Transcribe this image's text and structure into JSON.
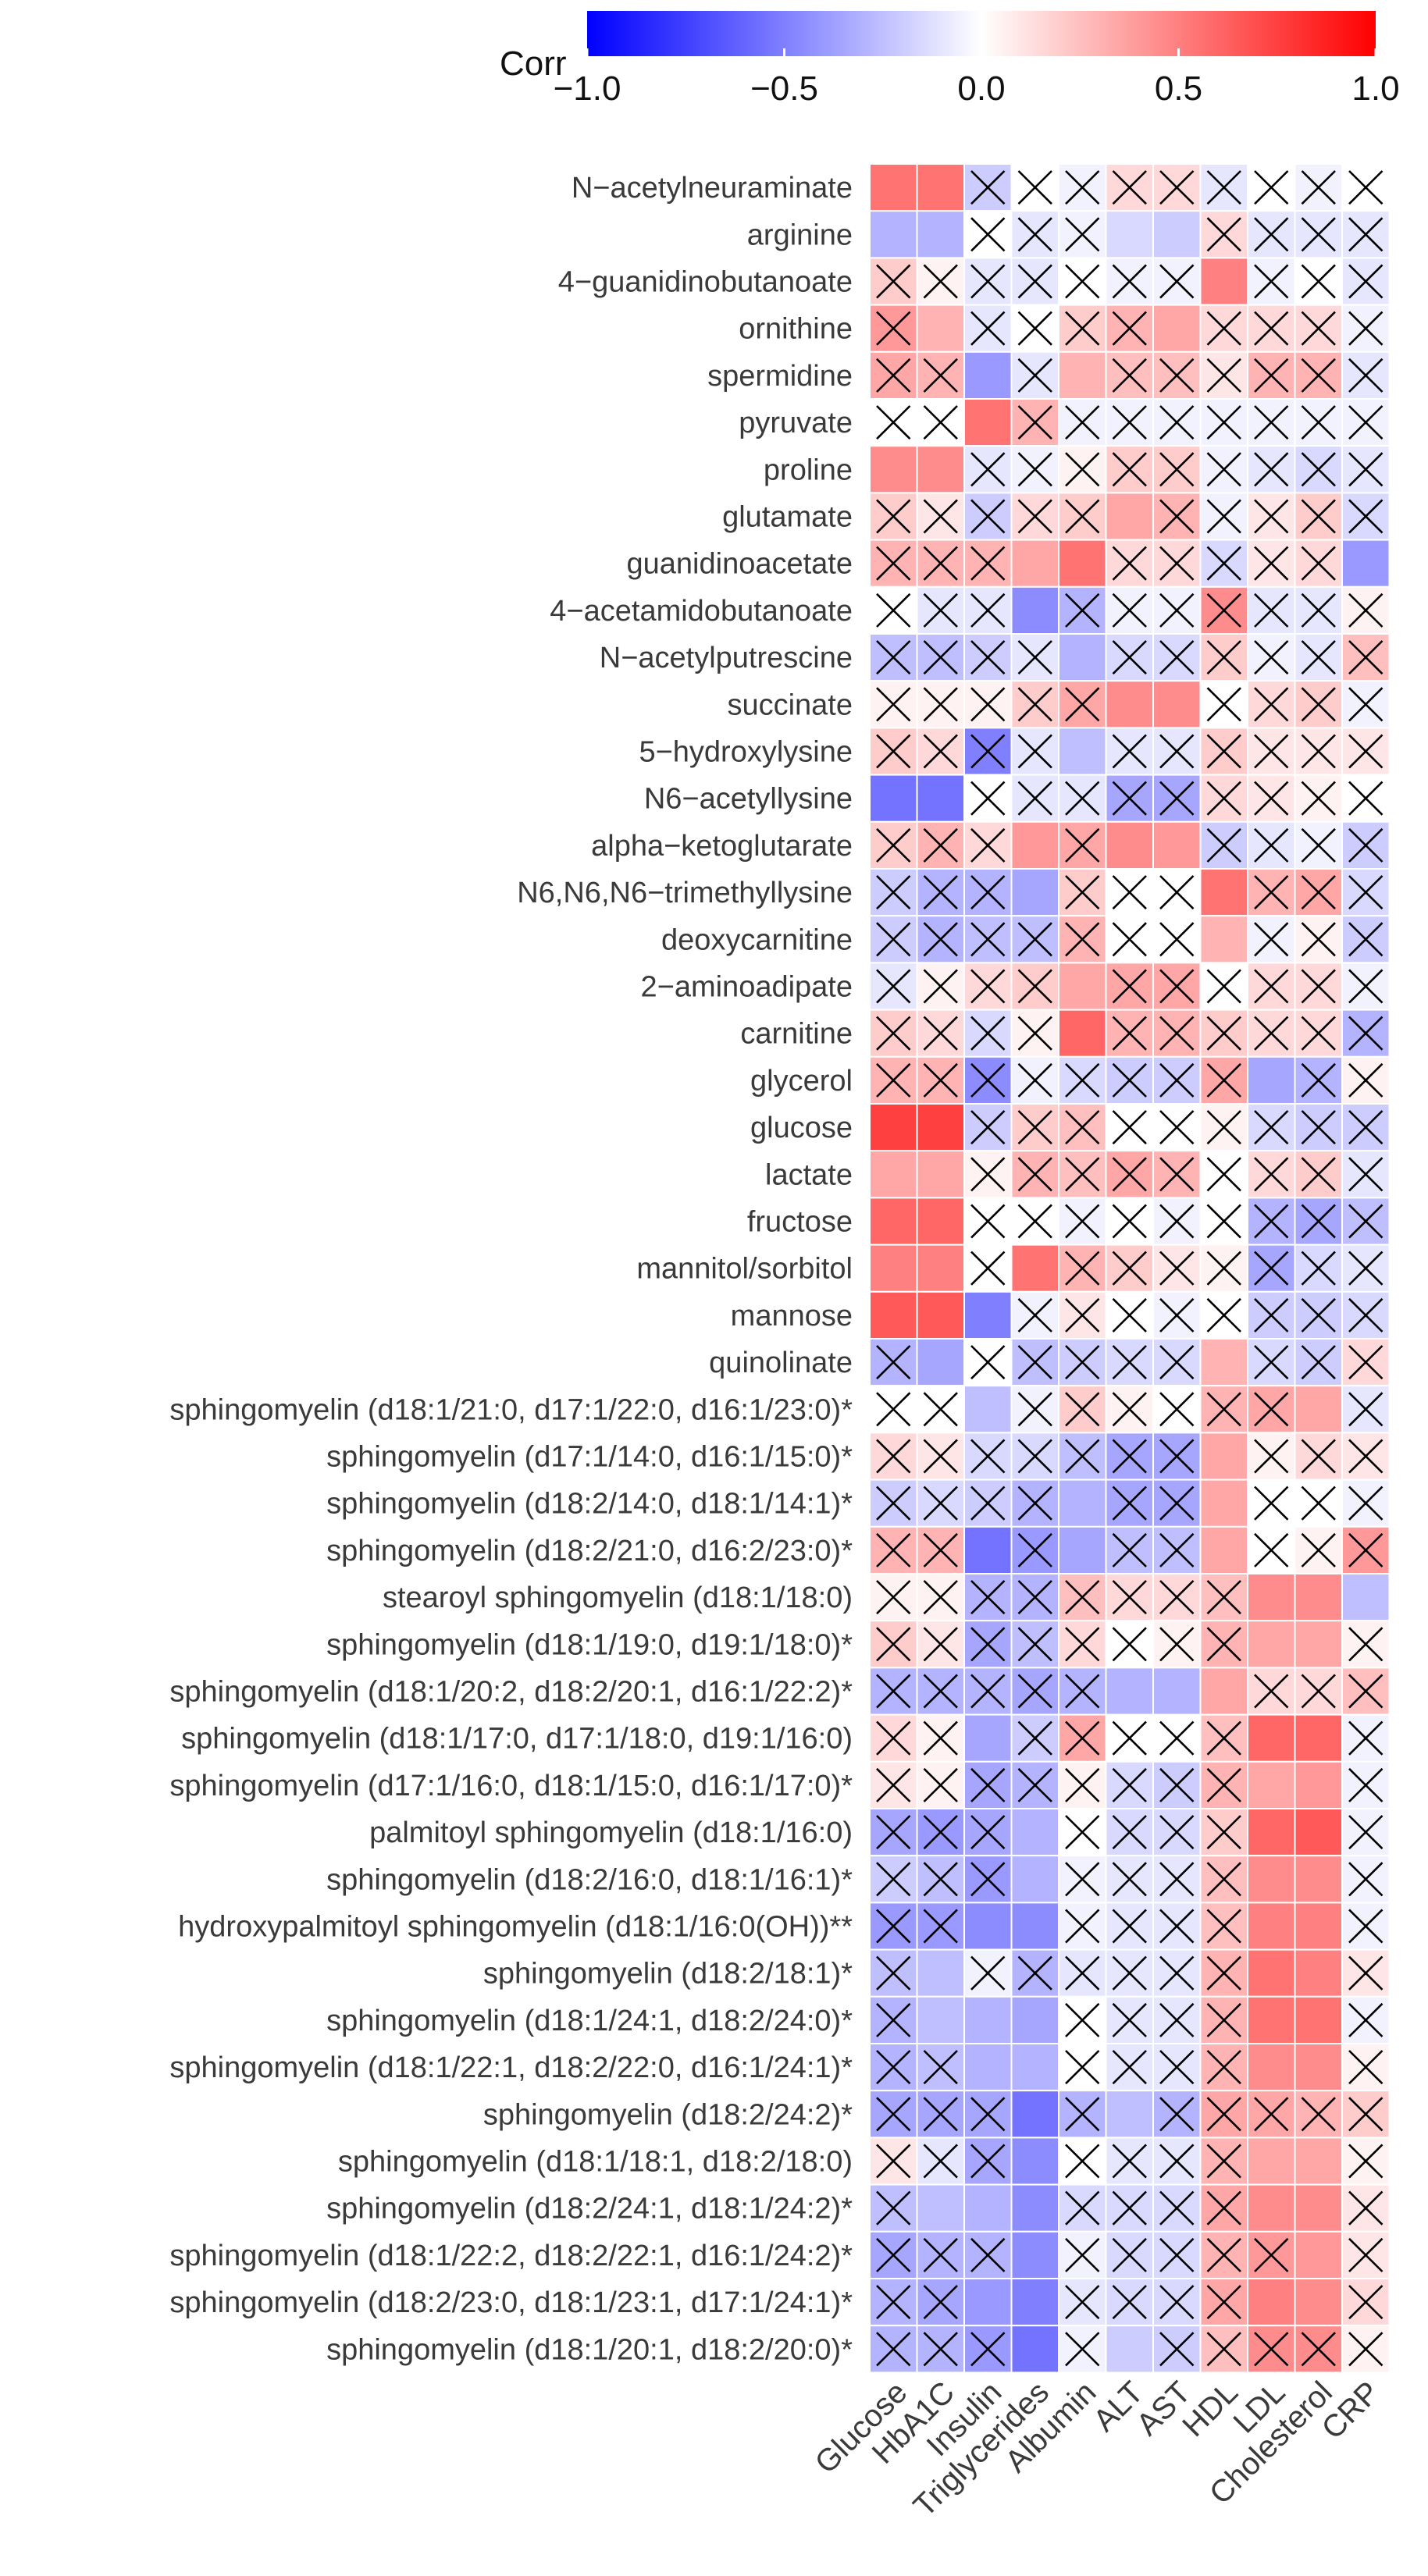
{
  "chart_data": {
    "type": "heatmap",
    "legend": {
      "title": "Corr",
      "range": [
        -1,
        1
      ],
      "ticks": [
        "-1.0",
        "-0.5",
        "0.0",
        "0.5",
        "1.0"
      ],
      "placement": "top",
      "low_color": "#0000ff",
      "mid_color": "#ffffff",
      "high_color": "#ff0000"
    },
    "columns": [
      "Glucose",
      "HbA1C",
      "Insulin",
      "Triglycerides",
      "Albumin",
      "ALT",
      "AST",
      "HDL",
      "LDL",
      "Cholesterol",
      "CRP"
    ],
    "rows": [
      "N−acetylneuraminate",
      "arginine",
      "4−guanidinobutanoate",
      "ornithine",
      "spermidine",
      "pyruvate",
      "proline",
      "glutamate",
      "guanidinoacetate",
      "4−acetamidobutanoate",
      "N−acetylputrescine",
      "succinate",
      "5−hydroxylysine",
      "N6−acetyllysine",
      "alpha−ketoglutarate",
      "N6,N6,N6−trimethyllysine",
      "deoxycarnitine",
      "2−aminoadipate",
      "carnitine",
      "glycerol",
      "glucose",
      "lactate",
      "fructose",
      "mannitol/sorbitol",
      "mannose",
      "quinolinate",
      "sphingomyelin (d18:1/21:0, d17:1/22:0, d16:1/23:0)*",
      "sphingomyelin (d17:1/14:0, d16:1/15:0)*",
      "sphingomyelin (d18:2/14:0, d18:1/14:1)*",
      "sphingomyelin (d18:2/21:0, d16:2/23:0)*",
      "stearoyl sphingomyelin (d18:1/18:0)",
      "sphingomyelin (d18:1/19:0, d19:1/18:0)*",
      "sphingomyelin (d18:1/20:2, d18:2/20:1, d16:1/22:2)*",
      "sphingomyelin (d18:1/17:0, d17:1/18:0, d19:1/16:0)",
      "sphingomyelin (d17:1/16:0, d18:1/15:0, d16:1/17:0)*",
      "palmitoyl sphingomyelin (d18:1/16:0)",
      "sphingomyelin (d18:2/16:0, d18:1/16:1)*",
      "hydroxypalmitoyl sphingomyelin (d18:1/16:0(OH))**",
      "sphingomyelin (d18:2/18:1)*",
      "sphingomyelin (d18:1/24:1, d18:2/24:0)*",
      "sphingomyelin (d18:1/22:1, d18:2/22:0, d16:1/24:1)*",
      "sphingomyelin (d18:2/24:2)*",
      "sphingomyelin (d18:1/18:1, d18:2/18:0)",
      "sphingomyelin (d18:2/24:1, d18:1/24:2)*",
      "sphingomyelin (d18:1/22:2, d18:2/22:1, d16:1/24:2)*",
      "sphingomyelin (d18:2/23:0, d18:1/23:1, d17:1/24:1)*",
      "sphingomyelin (d18:1/20:1, d18:2/20:0)*"
    ],
    "values": [
      [
        0.55,
        0.55,
        -0.2,
        0.0,
        -0.05,
        0.15,
        0.15,
        -0.1,
        0.0,
        -0.05,
        0.0
      ],
      [
        -0.3,
        -0.3,
        0.0,
        -0.1,
        -0.05,
        -0.15,
        -0.2,
        0.15,
        -0.1,
        -0.1,
        -0.1
      ],
      [
        0.2,
        0.05,
        -0.1,
        -0.1,
        0.0,
        -0.05,
        -0.05,
        0.5,
        -0.05,
        0.0,
        -0.1
      ],
      [
        0.4,
        0.3,
        -0.1,
        0.0,
        0.2,
        0.3,
        0.35,
        0.15,
        0.15,
        0.15,
        -0.05
      ],
      [
        0.35,
        0.3,
        -0.4,
        -0.1,
        0.3,
        0.25,
        0.25,
        0.1,
        0.3,
        0.3,
        -0.1
      ],
      [
        0.0,
        0.0,
        0.55,
        0.3,
        -0.05,
        -0.05,
        -0.05,
        -0.05,
        -0.05,
        -0.05,
        -0.05
      ],
      [
        0.45,
        0.45,
        -0.1,
        -0.05,
        0.05,
        0.2,
        0.2,
        -0.05,
        -0.1,
        -0.15,
        -0.1
      ],
      [
        0.2,
        0.1,
        -0.2,
        0.15,
        0.2,
        0.35,
        0.3,
        -0.05,
        0.1,
        0.2,
        -0.15
      ],
      [
        0.3,
        0.3,
        0.3,
        0.35,
        0.55,
        0.15,
        0.15,
        -0.15,
        0.1,
        0.15,
        -0.4
      ],
      [
        0.0,
        -0.1,
        -0.1,
        -0.45,
        -0.3,
        -0.05,
        -0.05,
        0.45,
        -0.1,
        -0.1,
        0.05
      ],
      [
        -0.25,
        -0.25,
        -0.2,
        -0.1,
        -0.3,
        -0.15,
        -0.15,
        0.2,
        -0.05,
        -0.1,
        0.25
      ],
      [
        0.05,
        0.05,
        0.05,
        0.2,
        0.35,
        0.45,
        0.45,
        0.0,
        0.15,
        0.2,
        -0.05
      ],
      [
        0.2,
        0.15,
        -0.5,
        -0.1,
        -0.25,
        -0.1,
        -0.1,
        0.2,
        0.1,
        0.1,
        0.1
      ],
      [
        -0.55,
        -0.55,
        0.0,
        -0.1,
        -0.1,
        -0.35,
        -0.35,
        0.15,
        0.1,
        0.05,
        0.0
      ],
      [
        0.2,
        0.3,
        0.15,
        0.4,
        0.35,
        0.45,
        0.4,
        -0.2,
        -0.1,
        -0.05,
        -0.2
      ],
      [
        -0.2,
        -0.3,
        -0.3,
        -0.35,
        0.2,
        0.0,
        0.0,
        0.55,
        0.3,
        0.35,
        -0.15
      ],
      [
        -0.2,
        -0.3,
        -0.25,
        -0.25,
        0.3,
        0.0,
        0.0,
        0.3,
        -0.05,
        0.05,
        -0.2
      ],
      [
        -0.1,
        0.05,
        0.15,
        0.2,
        0.35,
        0.35,
        0.35,
        0.0,
        0.15,
        0.15,
        -0.05
      ],
      [
        0.2,
        0.15,
        -0.15,
        0.05,
        0.6,
        0.3,
        0.3,
        0.2,
        0.15,
        0.15,
        -0.3
      ],
      [
        0.3,
        0.3,
        -0.45,
        -0.05,
        -0.15,
        -0.2,
        -0.2,
        0.35,
        -0.35,
        -0.3,
        0.05
      ],
      [
        0.75,
        0.75,
        -0.2,
        0.2,
        0.25,
        0.0,
        0.0,
        0.05,
        -0.15,
        -0.2,
        -0.2
      ],
      [
        0.35,
        0.35,
        0.05,
        0.3,
        0.25,
        0.35,
        0.3,
        0.0,
        0.15,
        0.2,
        -0.1
      ],
      [
        0.6,
        0.6,
        0.0,
        0.0,
        -0.05,
        0.0,
        -0.05,
        0.0,
        -0.3,
        -0.35,
        -0.25
      ],
      [
        0.5,
        0.5,
        0.0,
        0.55,
        0.3,
        0.2,
        0.1,
        0.05,
        -0.35,
        -0.15,
        -0.1
      ],
      [
        0.65,
        0.65,
        -0.5,
        -0.05,
        0.1,
        0.0,
        -0.05,
        0.0,
        -0.2,
        -0.2,
        -0.15
      ],
      [
        -0.3,
        -0.35,
        0.0,
        -0.25,
        -0.2,
        -0.15,
        -0.15,
        0.3,
        -0.15,
        -0.2,
        0.15
      ],
      [
        0.0,
        0.0,
        -0.25,
        -0.05,
        0.2,
        0.05,
        0.0,
        0.3,
        0.35,
        0.35,
        -0.1
      ],
      [
        0.15,
        0.1,
        -0.15,
        -0.15,
        -0.25,
        -0.35,
        -0.35,
        0.35,
        0.05,
        0.15,
        0.1
      ],
      [
        -0.2,
        -0.15,
        -0.2,
        -0.3,
        -0.3,
        -0.35,
        -0.35,
        0.35,
        0.0,
        0.0,
        -0.05
      ],
      [
        0.3,
        0.3,
        -0.55,
        -0.4,
        -0.35,
        -0.25,
        -0.25,
        0.35,
        0.0,
        0.05,
        0.4
      ],
      [
        0.05,
        0.05,
        -0.3,
        -0.3,
        0.25,
        0.15,
        0.15,
        0.25,
        0.45,
        0.45,
        -0.25
      ],
      [
        0.2,
        0.1,
        -0.35,
        -0.25,
        0.15,
        0.0,
        0.05,
        0.3,
        0.35,
        0.35,
        0.05
      ],
      [
        -0.3,
        -0.3,
        -0.3,
        -0.35,
        -0.3,
        -0.3,
        -0.3,
        0.35,
        0.15,
        0.15,
        0.25
      ],
      [
        0.15,
        0.05,
        -0.35,
        -0.2,
        0.35,
        0.0,
        0.0,
        0.25,
        0.6,
        0.6,
        -0.05
      ],
      [
        0.1,
        0.05,
        -0.35,
        -0.3,
        0.05,
        -0.15,
        -0.2,
        0.3,
        0.35,
        0.4,
        -0.05
      ],
      [
        -0.35,
        -0.4,
        -0.35,
        -0.3,
        0.0,
        -0.15,
        -0.15,
        0.2,
        0.6,
        0.65,
        -0.05
      ],
      [
        -0.2,
        -0.25,
        -0.4,
        -0.3,
        -0.05,
        -0.1,
        -0.1,
        0.25,
        0.45,
        0.45,
        -0.05
      ],
      [
        -0.4,
        -0.4,
        -0.45,
        -0.45,
        -0.05,
        -0.1,
        -0.1,
        0.25,
        0.5,
        0.5,
        -0.05
      ],
      [
        -0.25,
        -0.25,
        -0.05,
        -0.3,
        -0.1,
        -0.1,
        -0.1,
        0.3,
        0.55,
        0.5,
        0.1
      ],
      [
        -0.3,
        -0.25,
        -0.3,
        -0.35,
        0.0,
        -0.1,
        -0.1,
        0.3,
        0.55,
        0.55,
        -0.05
      ],
      [
        -0.3,
        -0.25,
        -0.3,
        -0.3,
        0.0,
        -0.1,
        -0.1,
        0.3,
        0.45,
        0.45,
        0.05
      ],
      [
        -0.35,
        -0.35,
        -0.35,
        -0.55,
        -0.3,
        -0.25,
        -0.3,
        0.35,
        0.35,
        0.3,
        0.2
      ],
      [
        0.1,
        -0.1,
        -0.35,
        -0.45,
        0.0,
        -0.1,
        -0.1,
        0.3,
        0.35,
        0.35,
        0.05
      ],
      [
        -0.25,
        -0.25,
        -0.3,
        -0.45,
        -0.15,
        -0.15,
        -0.15,
        0.35,
        0.45,
        0.45,
        0.1
      ],
      [
        -0.35,
        -0.3,
        -0.3,
        -0.45,
        -0.05,
        -0.15,
        -0.15,
        0.3,
        0.4,
        0.4,
        0.1
      ],
      [
        -0.3,
        -0.35,
        -0.4,
        -0.5,
        -0.1,
        -0.15,
        -0.15,
        0.35,
        0.5,
        0.45,
        0.15
      ],
      [
        -0.3,
        -0.3,
        -0.4,
        -0.55,
        -0.05,
        -0.2,
        -0.2,
        0.25,
        0.45,
        0.45,
        0.05
      ]
    ],
    "not_significant": [
      [
        0,
        0,
        1,
        1,
        1,
        1,
        1,
        1,
        1,
        1,
        1
      ],
      [
        0,
        0,
        1,
        1,
        1,
        0,
        0,
        1,
        1,
        1,
        1
      ],
      [
        1,
        1,
        1,
        1,
        1,
        1,
        1,
        0,
        1,
        1,
        1
      ],
      [
        1,
        0,
        1,
        1,
        1,
        1,
        0,
        1,
        1,
        1,
        1
      ],
      [
        1,
        1,
        0,
        1,
        0,
        1,
        1,
        1,
        1,
        1,
        1
      ],
      [
        1,
        1,
        0,
        1,
        1,
        1,
        1,
        1,
        1,
        1,
        1
      ],
      [
        0,
        0,
        1,
        1,
        1,
        1,
        1,
        1,
        1,
        1,
        1
      ],
      [
        1,
        1,
        1,
        1,
        1,
        0,
        1,
        1,
        1,
        1,
        1
      ],
      [
        1,
        1,
        1,
        0,
        0,
        1,
        1,
        1,
        1,
        1,
        0
      ],
      [
        1,
        1,
        1,
        0,
        1,
        1,
        1,
        1,
        1,
        1,
        1
      ],
      [
        1,
        1,
        1,
        1,
        0,
        1,
        1,
        1,
        1,
        1,
        1
      ],
      [
        1,
        1,
        1,
        1,
        1,
        0,
        0,
        1,
        1,
        1,
        1
      ],
      [
        1,
        1,
        1,
        1,
        0,
        1,
        1,
        1,
        1,
        1,
        1
      ],
      [
        0,
        0,
        1,
        1,
        1,
        1,
        1,
        1,
        1,
        1,
        1
      ],
      [
        1,
        1,
        1,
        0,
        1,
        0,
        0,
        1,
        1,
        1,
        1
      ],
      [
        1,
        1,
        1,
        0,
        1,
        1,
        1,
        0,
        1,
        1,
        1
      ],
      [
        1,
        1,
        1,
        1,
        1,
        1,
        1,
        0,
        1,
        1,
        1
      ],
      [
        1,
        1,
        1,
        1,
        0,
        1,
        1,
        1,
        1,
        1,
        1
      ],
      [
        1,
        1,
        1,
        1,
        0,
        1,
        1,
        1,
        1,
        1,
        1
      ],
      [
        1,
        1,
        1,
        1,
        1,
        1,
        1,
        1,
        0,
        1,
        1
      ],
      [
        0,
        0,
        1,
        1,
        1,
        1,
        1,
        1,
        1,
        1,
        1
      ],
      [
        0,
        0,
        1,
        1,
        1,
        1,
        1,
        1,
        1,
        1,
        1
      ],
      [
        0,
        0,
        1,
        1,
        1,
        1,
        1,
        1,
        1,
        1,
        1
      ],
      [
        0,
        0,
        1,
        0,
        1,
        1,
        1,
        1,
        1,
        1,
        1
      ],
      [
        0,
        0,
        0,
        1,
        1,
        1,
        1,
        1,
        1,
        1,
        1
      ],
      [
        1,
        0,
        1,
        1,
        1,
        1,
        1,
        0,
        1,
        1,
        1
      ],
      [
        1,
        1,
        0,
        1,
        1,
        1,
        1,
        1,
        1,
        0,
        1
      ],
      [
        1,
        1,
        1,
        1,
        1,
        1,
        1,
        0,
        1,
        1,
        1
      ],
      [
        1,
        1,
        1,
        1,
        0,
        1,
        1,
        0,
        1,
        1,
        1
      ],
      [
        1,
        1,
        0,
        1,
        0,
        1,
        1,
        0,
        1,
        1,
        1
      ],
      [
        1,
        1,
        1,
        1,
        1,
        1,
        1,
        1,
        0,
        0,
        0
      ],
      [
        1,
        1,
        1,
        1,
        1,
        1,
        1,
        1,
        0,
        0,
        1
      ],
      [
        1,
        1,
        1,
        1,
        1,
        0,
        0,
        0,
        1,
        1,
        1
      ],
      [
        1,
        1,
        0,
        1,
        1,
        1,
        1,
        1,
        0,
        0,
        1
      ],
      [
        1,
        1,
        1,
        1,
        1,
        1,
        1,
        1,
        0,
        0,
        1
      ],
      [
        1,
        1,
        1,
        0,
        1,
        1,
        1,
        1,
        0,
        0,
        1
      ],
      [
        1,
        1,
        1,
        0,
        1,
        1,
        1,
        1,
        0,
        0,
        1
      ],
      [
        1,
        1,
        0,
        0,
        1,
        1,
        1,
        1,
        0,
        0,
        1
      ],
      [
        1,
        0,
        1,
        1,
        1,
        1,
        1,
        1,
        0,
        0,
        1
      ],
      [
        1,
        0,
        0,
        0,
        1,
        1,
        1,
        1,
        0,
        0,
        1
      ],
      [
        1,
        1,
        0,
        0,
        1,
        1,
        1,
        1,
        0,
        0,
        1
      ],
      [
        1,
        1,
        1,
        0,
        1,
        0,
        1,
        1,
        1,
        1,
        1
      ],
      [
        1,
        1,
        1,
        0,
        1,
        1,
        1,
        1,
        0,
        0,
        1
      ],
      [
        1,
        0,
        0,
        0,
        1,
        1,
        1,
        1,
        0,
        0,
        1
      ],
      [
        1,
        1,
        1,
        0,
        1,
        1,
        1,
        1,
        1,
        0,
        1
      ],
      [
        1,
        1,
        0,
        0,
        1,
        1,
        1,
        1,
        0,
        0,
        1
      ],
      [
        1,
        1,
        1,
        0,
        1,
        0,
        1,
        1,
        1,
        1,
        1
      ]
    ]
  }
}
